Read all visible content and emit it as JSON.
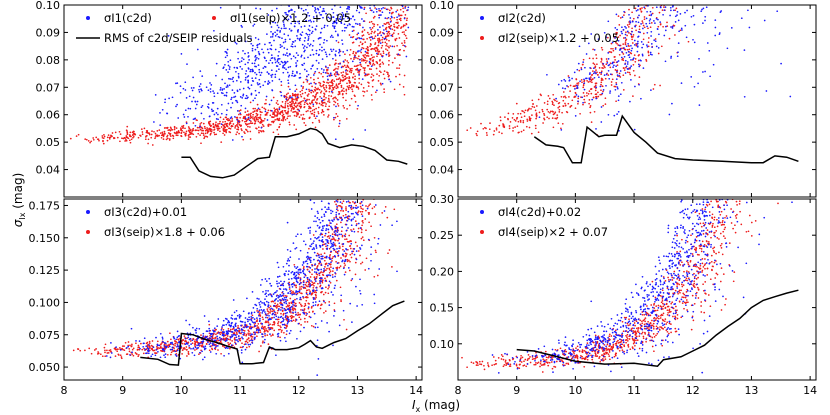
{
  "chart_data": [
    {
      "type": "scatter",
      "panel": "top-left",
      "xlim": [
        8,
        14.1
      ],
      "ylim": [
        0.03,
        0.1
      ],
      "xticks": [],
      "yticks": [
        0.04,
        0.05,
        0.06,
        0.07,
        0.08,
        0.09,
        0.1
      ],
      "ytick_labels": [
        "0.04",
        "0.05",
        "0.06",
        "0.07",
        "0.08",
        "0.09",
        "0.10"
      ],
      "band": "I1",
      "legend": {
        "c2d": "σI1(c2d)",
        "seip": "σI1(seip)×1.2 + 0.05",
        "rms": "RMS of c2d/SEIP residuals"
      },
      "model": {
        "c2d_start": 9.3,
        "c2d_base": 0.0515,
        "c2d_growth": 0.004,
        "c2d_rate": 0.55,
        "c2d_scatter": 0.0012,
        "c2d_outlier_fraction": 0.12,
        "c2d_outlier_spread": 0.02,
        "seip_start": 8,
        "seip_base": 0.0505,
        "seip_growth": 0.0008,
        "seip_rate": 0.7,
        "seip_scatter": 0.0006
      },
      "rms": {
        "x": [
          10.0,
          10.15,
          10.3,
          10.5,
          10.7,
          10.9,
          11.1,
          11.3,
          11.5,
          11.6,
          11.8,
          12.0,
          12.2,
          12.3,
          12.4,
          12.5,
          12.7,
          12.9,
          13.1,
          13.3,
          13.5,
          13.7,
          13.85
        ],
        "y": [
          0.0445,
          0.0445,
          0.0395,
          0.0375,
          0.037,
          0.038,
          0.041,
          0.044,
          0.0445,
          0.052,
          0.052,
          0.053,
          0.055,
          0.0545,
          0.053,
          0.0495,
          0.048,
          0.049,
          0.0485,
          0.047,
          0.0435,
          0.043,
          0.042
        ]
      }
    },
    {
      "type": "scatter",
      "panel": "top-right",
      "xlim": [
        8,
        14.1
      ],
      "ylim": [
        0.03,
        0.1
      ],
      "xticks": [],
      "yticks": [
        0.04,
        0.05,
        0.06,
        0.07,
        0.08,
        0.09,
        0.1
      ],
      "ytick_labels": [
        "0.04",
        "0.05",
        "0.06",
        "0.07",
        "0.08",
        "0.09",
        "0.10"
      ],
      "band": "I2",
      "legend": {
        "c2d": "σI2(c2d)",
        "seip": "σI2(seip)×1.2 + 0.05"
      },
      "model": {
        "c2d_start": 9.2,
        "c2d_base": 0.0515,
        "c2d_growth": 0.005,
        "c2d_rate": 0.65,
        "c2d_scatter": 0.0012,
        "c2d_outlier_fraction": 0.1,
        "c2d_outlier_spread": 0.02,
        "seip_start": 8,
        "seip_base": 0.0505,
        "seip_growth": 0.003,
        "seip_rate": 0.85,
        "seip_scatter": 0.0008
      },
      "rms": {
        "x": [
          9.3,
          9.5,
          9.7,
          9.8,
          9.95,
          10.1,
          10.2,
          10.4,
          10.5,
          10.7,
          10.8,
          11.0,
          11.2,
          11.4,
          11.7,
          12.0,
          12.5,
          13.0,
          13.2,
          13.4,
          13.6,
          13.8
        ],
        "y": [
          0.052,
          0.049,
          0.0485,
          0.048,
          0.0425,
          0.0425,
          0.0555,
          0.052,
          0.0525,
          0.0525,
          0.0595,
          0.0535,
          0.05,
          0.046,
          0.044,
          0.0435,
          0.043,
          0.0425,
          0.0425,
          0.045,
          0.0445,
          0.043
        ]
      }
    },
    {
      "type": "scatter",
      "panel": "bottom-left",
      "xlim": [
        8,
        14.1
      ],
      "ylim": [
        0.04,
        0.18
      ],
      "xticks": [
        8,
        9,
        10,
        11,
        12,
        13,
        14
      ],
      "xtick_labels": [
        "8",
        "9",
        "10",
        "11",
        "12",
        "13",
        "14"
      ],
      "yticks": [
        0.05,
        0.075,
        0.1,
        0.125,
        0.15,
        0.175
      ],
      "ytick_labels": [
        "0.050",
        "0.075",
        "0.100",
        "0.125",
        "0.150",
        "0.175"
      ],
      "band": "I3",
      "legend": {
        "c2d": "σI3(c2d)+0.01",
        "seip": "σI3(seip)×1.8 + 0.06"
      },
      "model": {
        "c2d_start": 8.7,
        "c2d_base": 0.062,
        "c2d_growth": 0.0008,
        "c2d_rate": 1.05,
        "c2d_scatter": 0.003,
        "c2d_outlier_fraction": 0.02,
        "c2d_outlier_spread": 0.02,
        "seip_start": 8,
        "seip_base": 0.0615,
        "seip_growth": 0.0006,
        "seip_rate": 1.05,
        "seip_scatter": 0.0025
      },
      "rms": {
        "x": [
          9.3,
          9.6,
          9.8,
          9.95,
          10.0,
          10.2,
          10.4,
          10.6,
          10.8,
          10.95,
          11.0,
          11.2,
          11.4,
          11.5,
          11.6,
          11.8,
          12.0,
          12.1,
          12.2,
          12.3,
          12.4,
          12.6,
          12.8,
          13.0,
          13.2,
          13.4,
          13.6,
          13.8
        ],
        "y": [
          0.0575,
          0.056,
          0.052,
          0.0515,
          0.076,
          0.075,
          0.0715,
          0.069,
          0.066,
          0.064,
          0.0525,
          0.0525,
          0.0535,
          0.0655,
          0.0635,
          0.0635,
          0.065,
          0.0675,
          0.0705,
          0.0655,
          0.0645,
          0.069,
          0.072,
          0.078,
          0.0835,
          0.0905,
          0.0975,
          0.101
        ]
      }
    },
    {
      "type": "scatter",
      "panel": "bottom-right",
      "xlim": [
        8,
        14.1
      ],
      "ylim": [
        0.05,
        0.3
      ],
      "xticks": [
        8,
        9,
        10,
        11,
        12,
        13,
        14
      ],
      "xtick_labels": [
        "8",
        "9",
        "10",
        "11",
        "12",
        "13",
        "14"
      ],
      "yticks": [
        0.1,
        0.15,
        0.2,
        0.25,
        0.3
      ],
      "ytick_labels": [
        "0.10",
        "0.15",
        "0.20",
        "0.25",
        "0.30"
      ],
      "band": "I4",
      "legend": {
        "c2d": "σI4(c2d)+0.02",
        "seip": "σI4(seip)×2 + 0.07"
      },
      "model": {
        "c2d_start": 8.5,
        "c2d_base": 0.072,
        "c2d_growth": 0.0018,
        "c2d_rate": 1.15,
        "c2d_scatter": 0.005,
        "c2d_outlier_fraction": 0.02,
        "c2d_outlier_spread": 0.03,
        "seip_start": 8,
        "seip_base": 0.071,
        "seip_growth": 0.0013,
        "seip_rate": 1.15,
        "seip_scatter": 0.004
      },
      "rms": {
        "x": [
          9.0,
          9.3,
          9.6,
          10.0,
          10.5,
          11.0,
          11.4,
          11.5,
          11.8,
          12.0,
          12.2,
          12.4,
          12.6,
          12.8,
          13.0,
          13.2,
          13.4,
          13.6,
          13.8
        ],
        "y": [
          0.092,
          0.09,
          0.084,
          0.076,
          0.072,
          0.073,
          0.069,
          0.078,
          0.082,
          0.09,
          0.098,
          0.112,
          0.124,
          0.135,
          0.15,
          0.16,
          0.165,
          0.17,
          0.174
        ]
      }
    }
  ],
  "axes": {
    "xlabel_main": "I",
    "xlabel_sub": "x",
    "xlabel_unit": " (mag)",
    "ylabel_main": "σ",
    "ylabel_sub": "Ix",
    "ylabel_unit": " (mag)"
  },
  "colors": {
    "c2d": "#1a1aff",
    "seip": "#ee1c1c",
    "rms": "#000000",
    "frame": "#000000"
  }
}
